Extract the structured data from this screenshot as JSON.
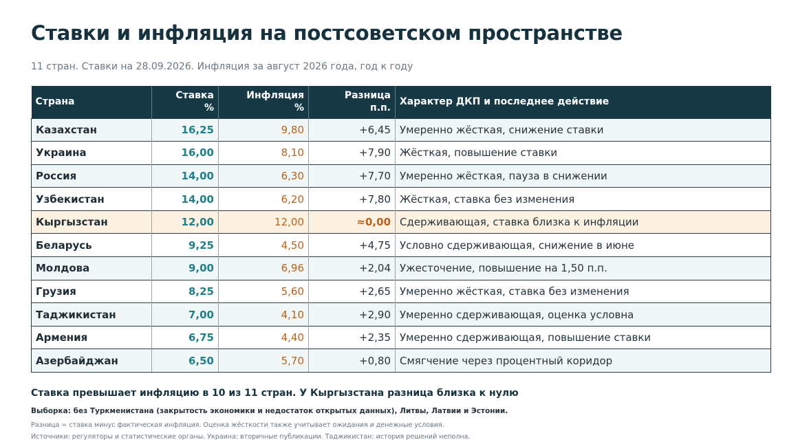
{
  "title": "Ставки и инфляция на постсоветском пространстве",
  "subtitle": "11 стран. Ставки на 28.09.2026. Инфляция за август 2026 года, год к году",
  "table": {
    "headers": {
      "country": "Страна",
      "rate_line1": "Ставка",
      "rate_line2": "%",
      "inflation_line1": "Инфляция",
      "inflation_line2": "%",
      "diff_line1": "Разница",
      "diff_line2": "п.п.",
      "policy": "Характер ДКП и последнее действие"
    },
    "rows": [
      {
        "country": "Казахстан",
        "rate": "16,25",
        "inflation": "9,80",
        "diff": "+6,45",
        "policy": "Умеренно жёсткая, снижение ставки"
      },
      {
        "country": "Украина",
        "rate": "16,00",
        "inflation": "8,10",
        "diff": "+7,90",
        "policy": "Жёсткая, повышение ставки"
      },
      {
        "country": "Россия",
        "rate": "14,00",
        "inflation": "6,30",
        "diff": "+7,70",
        "policy": "Умеренно жёсткая, пауза в снижении"
      },
      {
        "country": "Узбекистан",
        "rate": "14,00",
        "inflation": "6,20",
        "diff": "+7,80",
        "policy": "Жёсткая, ставка без изменения"
      },
      {
        "country": "Кыргызстан",
        "rate": "12,00",
        "inflation": "12,00",
        "diff": "≈0,00",
        "policy": "Сдерживающая, ставка близка к инфляции",
        "highlight": true
      },
      {
        "country": "Беларусь",
        "rate": "9,25",
        "inflation": "4,50",
        "diff": "+4,75",
        "policy": "Условно сдерживающая, снижение в июне"
      },
      {
        "country": "Молдова",
        "rate": "9,00",
        "inflation": "6,96",
        "diff": "+2,04",
        "policy": "Ужесточение, повышение на 1,50 п.п."
      },
      {
        "country": "Грузия",
        "rate": "8,25",
        "inflation": "5,60",
        "diff": "+2,65",
        "policy": "Умеренно жёсткая, ставка без изменения"
      },
      {
        "country": "Таджикистан",
        "rate": "7,00",
        "inflation": "4,10",
        "diff": "+2,90",
        "policy": "Умеренно сдерживающая, оценка условна"
      },
      {
        "country": "Армения",
        "rate": "6,75",
        "inflation": "4,40",
        "diff": "+2,35",
        "policy": "Умеренно сдерживающая, повышение ставки"
      },
      {
        "country": "Азербайджан",
        "rate": "6,50",
        "inflation": "5,70",
        "diff": "+0,80",
        "policy": "Смягчение через процентный коридор"
      }
    ]
  },
  "summary": "Ставка превышает инфляцию в 10 из 11 стран. У Кыргызстана разница близка к нулю",
  "notes": {
    "sample": "Выборка: без Туркменистана (закрытость экономики и недостаток открытых данных), Литвы, Латвии и Эстонии.",
    "method": "Разница = ставка минус фактическая инфляция. Оценка жёсткости также учитывает ожидания и денежные условия.",
    "sources": "Источники: регуляторы и статистические органы. Украина: вторичные публикации. Таджикистан: история решений неполна."
  },
  "colors": {
    "header_bg": "#173845",
    "rate": "#1f7f8a",
    "inflation": "#b8621b",
    "highlight_row": "#fdf1e2"
  }
}
